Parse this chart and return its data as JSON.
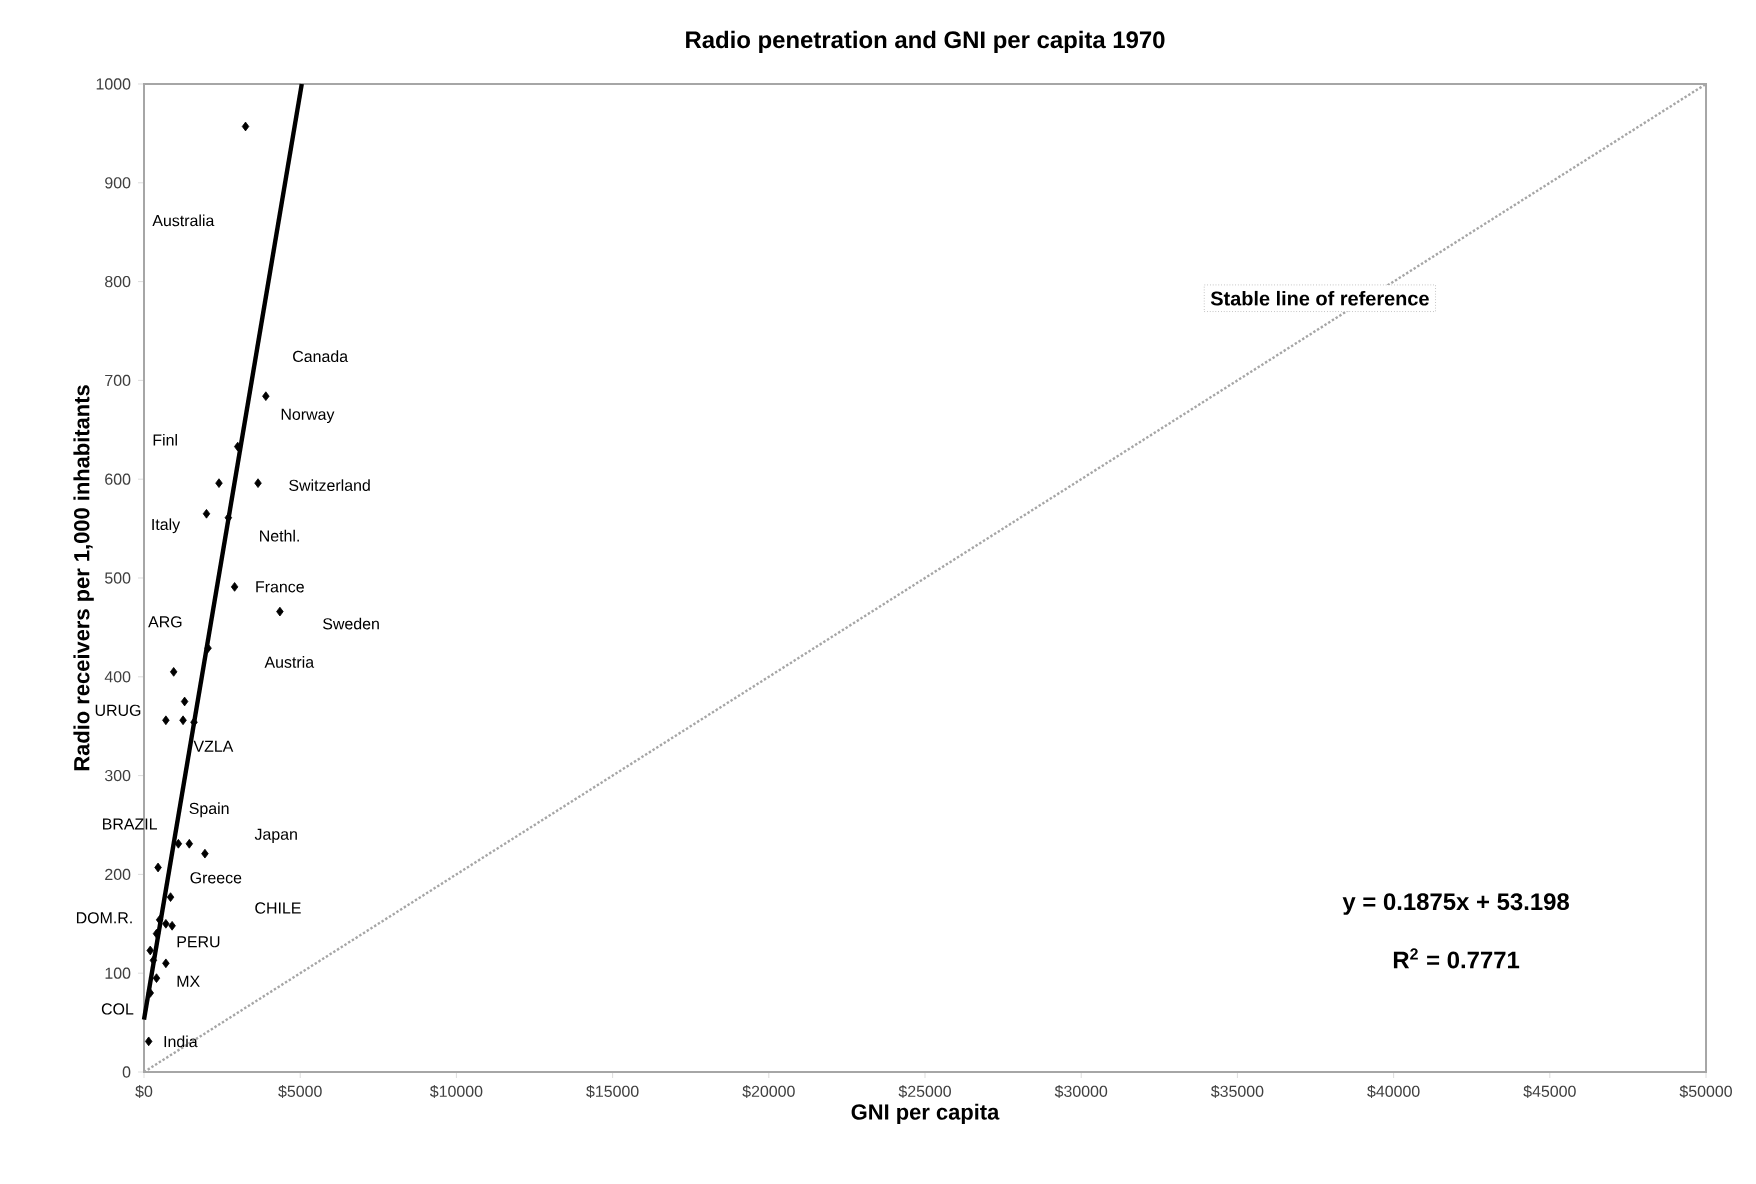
{
  "chart_data": {
    "type": "scatter",
    "title": "Radio penetration and GNI per capita 1970",
    "xlabel": "GNI per capita",
    "ylabel": "Radio receivers per 1,000 inhabitants",
    "xlim": [
      0,
      50000
    ],
    "ylim": [
      0,
      1000
    ],
    "xticks": [
      {
        "value": 0,
        "label": "$0"
      },
      {
        "value": 5000,
        "label": "$5000"
      },
      {
        "value": 10000,
        "label": "$10000"
      },
      {
        "value": 15000,
        "label": "$15000"
      },
      {
        "value": 20000,
        "label": "$20000"
      },
      {
        "value": 25000,
        "label": "$25000"
      },
      {
        "value": 30000,
        "label": "$30000"
      },
      {
        "value": 35000,
        "label": "$35000"
      },
      {
        "value": 40000,
        "label": "$40000"
      },
      {
        "value": 45000,
        "label": "$45000"
      },
      {
        "value": 50000,
        "label": "$50000"
      }
    ],
    "yticks": [
      0,
      100,
      200,
      300,
      400,
      500,
      600,
      700,
      800,
      900,
      1000
    ],
    "series": [
      {
        "marker": "diamond",
        "color": "#000000",
        "x": [
          3250,
          3900,
          3000,
          2400,
          3650,
          2000,
          2700,
          2900,
          4350,
          2050,
          950,
          1300,
          700,
          1250,
          1600,
          1100,
          1450,
          1950,
          450,
          850,
          500,
          700,
          900,
          400,
          200,
          300,
          700,
          400,
          200,
          150
        ],
        "values": [
          957,
          684,
          633,
          596,
          596,
          565,
          561,
          491,
          466,
          429,
          405,
          375,
          356,
          356,
          354,
          231,
          231,
          221,
          207,
          177,
          154,
          150,
          148,
          140,
          123,
          113,
          110,
          95,
          80,
          31
        ]
      },
      {
        "type": "line",
        "color": "#000000",
        "x": [
          0,
          5050
        ],
        "values": [
          53,
          1000
        ]
      },
      {
        "type": "line",
        "name": "Stable line of reference",
        "color": "#a6a6a6",
        "line_style": "dotted",
        "x": [
          0,
          50000
        ],
        "values": [
          0,
          1000
        ]
      }
    ],
    "annotations": [
      "y = 0.1875x + 53.198",
      "R$^{2}$ = 0.7771",
      "Australia",
      "Norway",
      "Finl",
      "Austria",
      "BRAZIL",
      "CHILE",
      "Japan",
      {
        "text": "Canada",
        "x": 3900,
        "y": 684
      },
      {
        "text": "Switzerland",
        "x": 3650,
        "y": 596
      },
      {
        "text": "Italy",
        "x": 2000,
        "y": 565
      },
      {
        "text": "Nethl.",
        "x": 2700,
        "y": 561
      },
      {
        "text": "France",
        "x": 2900,
        "y": 491
      },
      {
        "text": "Sweden",
        "x": 4350,
        "y": 466
      },
      {
        "text": "ARG",
        "x": 950,
        "y": 405
      },
      {
        "text": "URUG",
        "x": 700,
        "y": 356
      },
      {
        "text": "VZLA",
        "x": 1250,
        "y": 356
      },
      {
        "text": "Spain",
        "x": 1100,
        "y": 231
      },
      {
        "text": "Greece",
        "x": 1450,
        "y": 231
      },
      {
        "text": "DOM.R.",
        "x": 500,
        "y": 154
      },
      {
        "text": "PERU",
        "x": 700,
        "y": 150
      },
      {
        "text": "MX",
        "x": 700,
        "y": 110
      },
      {
        "text": "COL",
        "x": 200,
        "y": 80
      },
      {
        "text": "India",
        "x": 150,
        "y": 31
      }
    ]
  }
}
